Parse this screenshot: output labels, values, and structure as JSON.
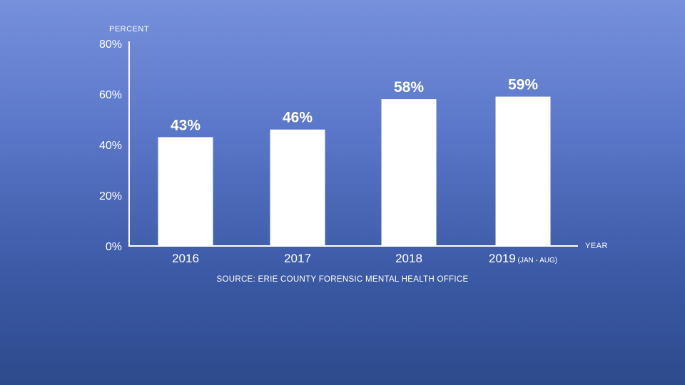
{
  "chart_data": {
    "type": "bar",
    "categories": [
      "2016",
      "2017",
      "2018",
      "2019"
    ],
    "category_notes": [
      "",
      "",
      "",
      "(JAN - AUG)"
    ],
    "values": [
      43,
      46,
      58,
      59
    ],
    "data_labels": [
      "43%",
      "46%",
      "58%",
      "59%"
    ],
    "ylabel": "PERCENT",
    "xlabel": "YEAR",
    "ylim": [
      0,
      80
    ],
    "yticks": [
      0,
      20,
      40,
      60,
      80
    ],
    "ytick_labels": [
      "0%",
      "20%",
      "40%",
      "60%",
      "80%"
    ],
    "grid": false,
    "source": "SOURCE: ERIE COUNTY FORENSIC MENTAL HEALTH OFFICE",
    "colors": {
      "bar": "#ffffff",
      "axis": "#ffffff"
    }
  }
}
